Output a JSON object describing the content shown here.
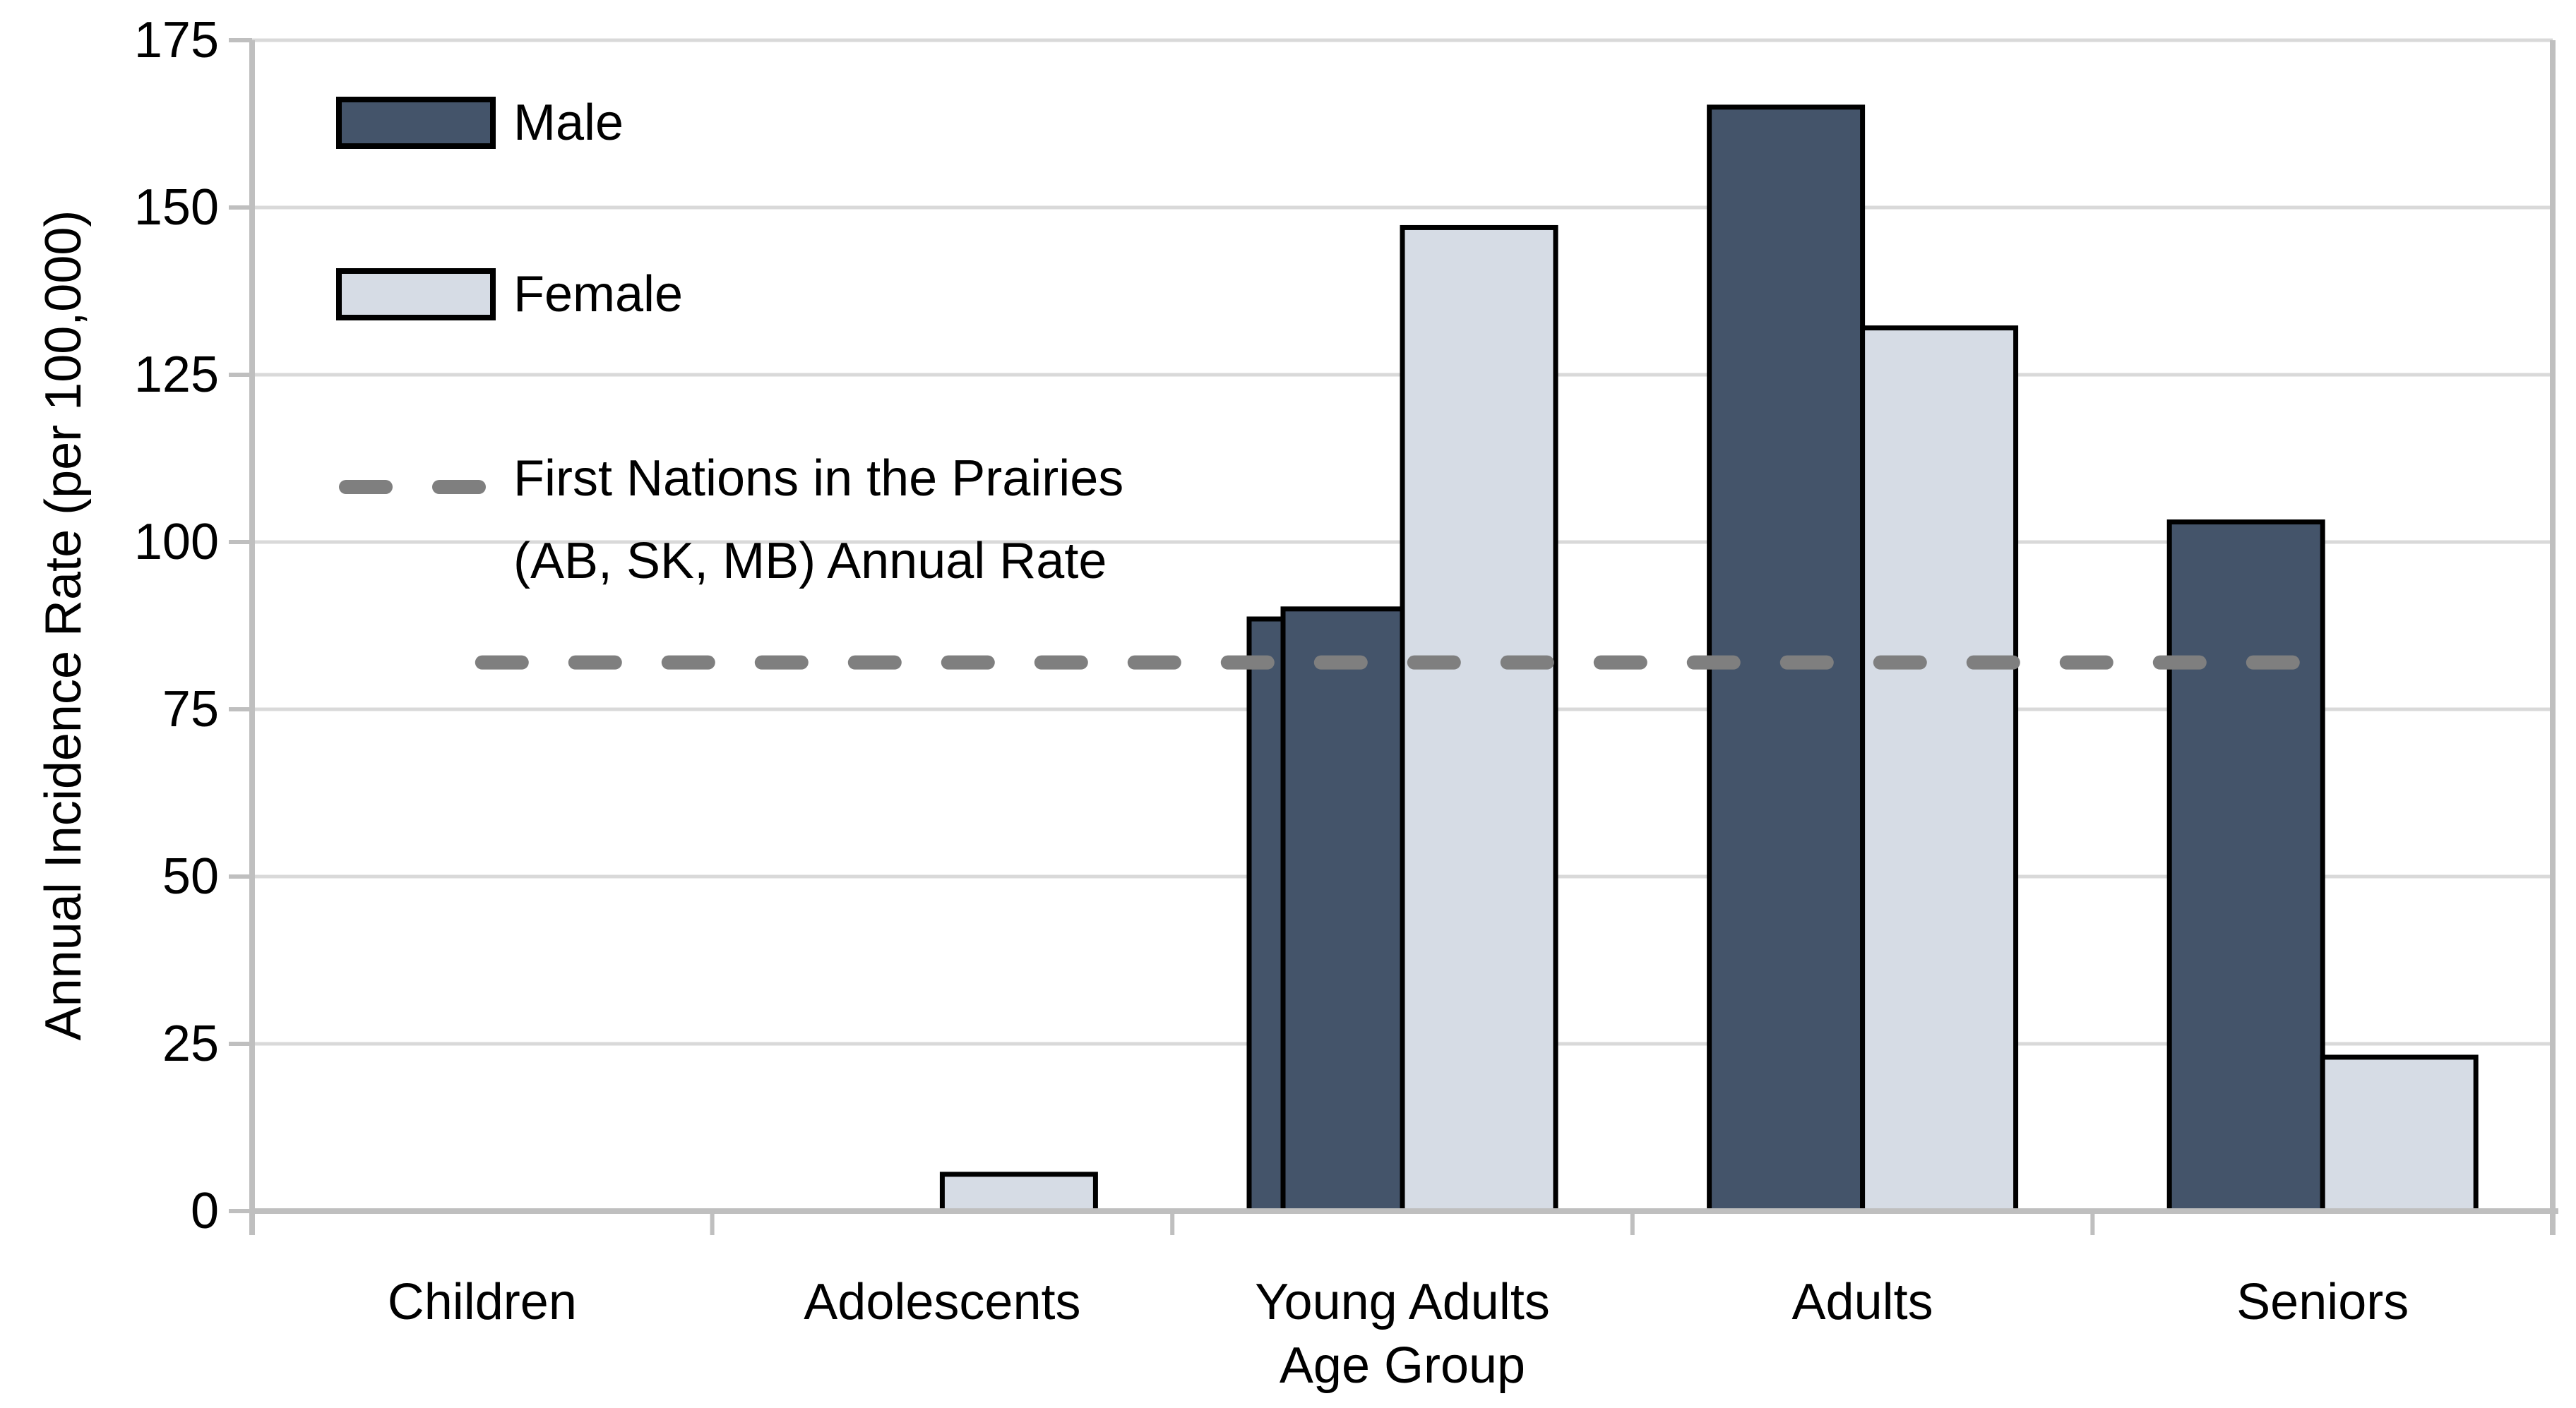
{
  "chart_data": {
    "type": "bar",
    "title": "",
    "categories": [
      "Children",
      "Adolescents",
      "Young Adults",
      "Adults",
      "Seniors"
    ],
    "series": [
      {
        "name": "Male",
        "color": "#44546A",
        "values": [
          0,
          0,
          90,
          165,
          103
        ]
      },
      {
        "name": "Female",
        "color": "#D6DCE5",
        "values": [
          0,
          5.5,
          147,
          132,
          23
        ]
      }
    ],
    "male_step_artifact": {
      "category": "Young Adults",
      "category_index": 2,
      "value": 88.5
    },
    "reference_line": {
      "value": 82,
      "label": "First Nations in the Prairies (AB, SK, MB) Annual Rate",
      "label_lines": [
        "First Nations in the Prairies",
        "(AB, SK, MB) Annual Rate"
      ],
      "color": "#7F7F7F",
      "style": "dashed"
    },
    "xlabel": "Age Group",
    "ylabel": "Annual Incidence Rate (per 100,000)",
    "ylim": [
      0,
      175
    ],
    "ytick_step": 25,
    "yticks": [
      0,
      25,
      50,
      75,
      100,
      125,
      150,
      175
    ],
    "grid": true,
    "legend_position": "top-left",
    "legend_entries": [
      "Male",
      "Female",
      "First Nations in the Prairies (AB, SK, MB) Annual Rate"
    ],
    "colors": {
      "bar_outline": "#000000",
      "gridline": "#D9D9D9",
      "axis": "#BFBFBF",
      "text": "#000000",
      "reference": "#7F7F7F",
      "background": "#FFFFFF"
    }
  }
}
